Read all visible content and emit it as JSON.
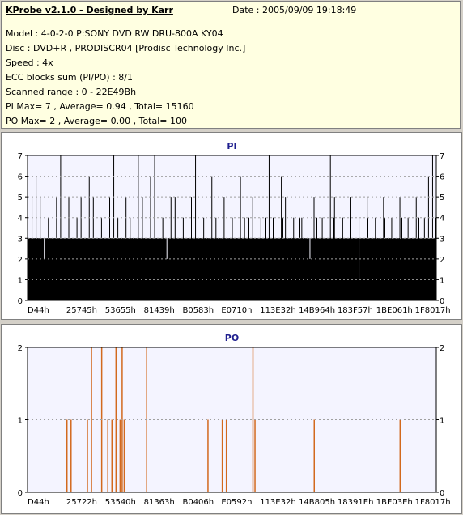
{
  "info": {
    "title": "KProbe v2.1.0 - Designed by Karr",
    "date": "Date : 2005/09/09 19:18:49",
    "lines": [
      "Model : 4-0-2-0 P:SONY    DVD RW DRU-800A  KY04",
      "Disc : DVD+R , PRODISCR04 [Prodisc Technology Inc.]",
      "Speed : 4x",
      "ECC blocks sum (PI/PO) : 8/1",
      "Scanned range : 0 - 22E49Bh",
      "PI Max= 7 , Average= 0.94 , Total= 15160",
      "PO Max= 2 , Average= 0.00 , Total= 100"
    ]
  },
  "chart_data": [
    {
      "type": "bar",
      "title": "PI",
      "ylim": [
        0,
        7
      ],
      "yticks": [
        "0",
        "1",
        "2",
        "3",
        "4",
        "5",
        "6",
        "7"
      ],
      "xticks": [
        "D44h",
        "25745h",
        "53655h",
        "81439h",
        "B0583h",
        "E0710h",
        "113E32h",
        "14B964h",
        "183F57h",
        "1BE061h",
        "1F8017h"
      ],
      "base_level": 3,
      "spikes": [
        {
          "x": 0.01,
          "y": 5
        },
        {
          "x": 0.02,
          "y": 6
        },
        {
          "x": 0.03,
          "y": 5
        },
        {
          "x": 0.05,
          "y": 4
        },
        {
          "x": 0.07,
          "y": 5
        },
        {
          "x": 0.08,
          "y": 7
        },
        {
          "x": 0.1,
          "y": 5
        },
        {
          "x": 0.12,
          "y": 4
        },
        {
          "x": 0.13,
          "y": 5
        },
        {
          "x": 0.15,
          "y": 6
        },
        {
          "x": 0.16,
          "y": 5
        },
        {
          "x": 0.18,
          "y": 4
        },
        {
          "x": 0.2,
          "y": 5
        },
        {
          "x": 0.21,
          "y": 7
        },
        {
          "x": 0.22,
          "y": 4
        },
        {
          "x": 0.24,
          "y": 5
        },
        {
          "x": 0.25,
          "y": 4
        },
        {
          "x": 0.27,
          "y": 7
        },
        {
          "x": 0.28,
          "y": 5
        },
        {
          "x": 0.3,
          "y": 6
        },
        {
          "x": 0.31,
          "y": 7
        },
        {
          "x": 0.33,
          "y": 4
        },
        {
          "x": 0.35,
          "y": 5
        },
        {
          "x": 0.36,
          "y": 5
        },
        {
          "x": 0.38,
          "y": 4
        },
        {
          "x": 0.4,
          "y": 5
        },
        {
          "x": 0.41,
          "y": 7
        },
        {
          "x": 0.43,
          "y": 4
        },
        {
          "x": 0.45,
          "y": 6
        },
        {
          "x": 0.46,
          "y": 4
        },
        {
          "x": 0.48,
          "y": 5
        },
        {
          "x": 0.5,
          "y": 4
        },
        {
          "x": 0.52,
          "y": 6
        },
        {
          "x": 0.53,
          "y": 4
        },
        {
          "x": 0.55,
          "y": 5
        },
        {
          "x": 0.57,
          "y": 4
        },
        {
          "x": 0.59,
          "y": 7
        },
        {
          "x": 0.6,
          "y": 4
        },
        {
          "x": 0.62,
          "y": 6
        },
        {
          "x": 0.63,
          "y": 5
        },
        {
          "x": 0.65,
          "y": 4
        },
        {
          "x": 0.67,
          "y": 4
        },
        {
          "x": 0.7,
          "y": 5
        },
        {
          "x": 0.72,
          "y": 4
        },
        {
          "x": 0.74,
          "y": 7
        },
        {
          "x": 0.75,
          "y": 5
        },
        {
          "x": 0.77,
          "y": 4
        },
        {
          "x": 0.79,
          "y": 5
        },
        {
          "x": 0.81,
          "y": 4
        },
        {
          "x": 0.83,
          "y": 5
        },
        {
          "x": 0.85,
          "y": 4
        },
        {
          "x": 0.87,
          "y": 5
        },
        {
          "x": 0.89,
          "y": 4
        },
        {
          "x": 0.91,
          "y": 5
        },
        {
          "x": 0.93,
          "y": 4
        },
        {
          "x": 0.95,
          "y": 5
        },
        {
          "x": 0.97,
          "y": 4
        },
        {
          "x": 0.98,
          "y": 6
        },
        {
          "x": 0.99,
          "y": 7
        }
      ],
      "dips": [
        {
          "x": 0.81,
          "y": 1
        },
        {
          "x": 0.04,
          "y": 2
        },
        {
          "x": 0.34,
          "y": 2
        },
        {
          "x": 0.69,
          "y": 2
        }
      ],
      "grid": true,
      "bar_color": "#000000",
      "grid_color": "#a0a0a0"
    },
    {
      "type": "bar",
      "title": "PO",
      "ylim": [
        0,
        2
      ],
      "yticks": [
        "0",
        "1",
        "2"
      ],
      "xticks": [
        "D44h",
        "25722h",
        "53540h",
        "81363h",
        "B0406h",
        "E0592h",
        "113E32h",
        "14B805h",
        "18391Eh",
        "1BE03Eh",
        "1F8017h"
      ],
      "bars": [
        {
          "x": 0.095,
          "y": 1
        },
        {
          "x": 0.105,
          "y": 1
        },
        {
          "x": 0.145,
          "y": 1
        },
        {
          "x": 0.155,
          "y": 2
        },
        {
          "x": 0.18,
          "y": 2
        },
        {
          "x": 0.195,
          "y": 1
        },
        {
          "x": 0.205,
          "y": 1
        },
        {
          "x": 0.215,
          "y": 2
        },
        {
          "x": 0.225,
          "y": 1
        },
        {
          "x": 0.23,
          "y": 2
        },
        {
          "x": 0.235,
          "y": 1
        },
        {
          "x": 0.29,
          "y": 2
        },
        {
          "x": 0.44,
          "y": 1
        },
        {
          "x": 0.475,
          "y": 1
        },
        {
          "x": 0.485,
          "y": 1
        },
        {
          "x": 0.55,
          "y": 2
        },
        {
          "x": 0.555,
          "y": 1
        },
        {
          "x": 0.7,
          "y": 1
        },
        {
          "x": 0.91,
          "y": 1
        }
      ],
      "grid": true,
      "bar_color": "#d2691e",
      "grid_color": "#a0a0a0"
    }
  ]
}
